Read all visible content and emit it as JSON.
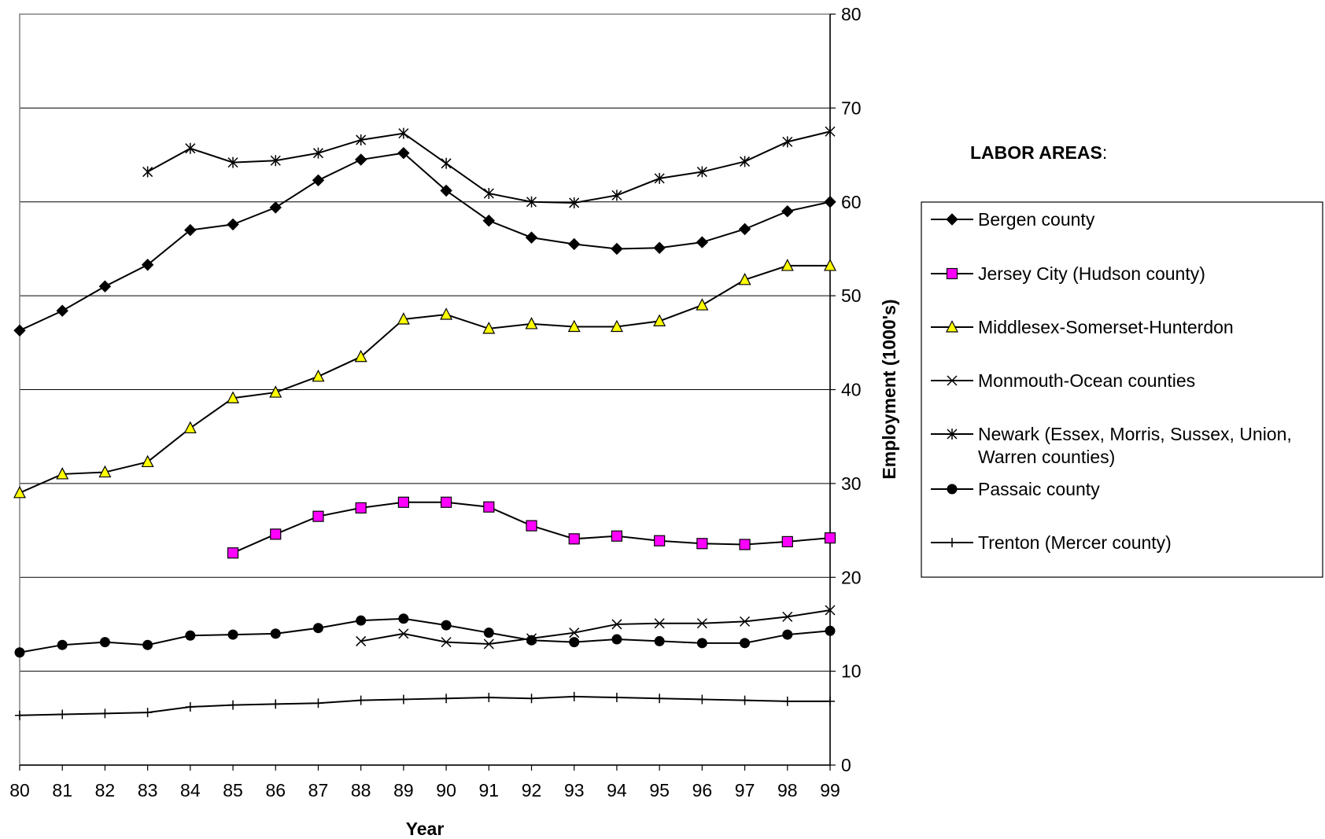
{
  "chart_data": {
    "type": "line",
    "title": "",
    "xlabel": "Year",
    "ylabel": "Employment (1000's)",
    "xlim": [
      80,
      99
    ],
    "ylim": [
      0,
      80
    ],
    "y_ticks": [
      0,
      10,
      20,
      30,
      40,
      50,
      60,
      70,
      80
    ],
    "x_tick_labels": [
      "80",
      "81",
      "82",
      "83",
      "84",
      "85",
      "86",
      "87",
      "88",
      "89",
      "90",
      "91",
      "92",
      "93",
      "94",
      "95",
      "96",
      "97",
      "98",
      "99"
    ],
    "y_axis_side": "right",
    "grid": "horizontal",
    "legend_placement": "right",
    "legend_heading": "LABOR AREAS",
    "legend_heading_suffix": ":",
    "series": [
      {
        "name": "Bergen county",
        "marker": "diamond",
        "color": "#000000",
        "x": [
          80,
          81,
          82,
          83,
          84,
          85,
          86,
          87,
          88,
          89,
          90,
          91,
          92,
          93,
          94,
          95,
          96,
          97,
          98,
          99
        ],
        "values": [
          46.3,
          48.4,
          51,
          53.3,
          57,
          57.6,
          59.4,
          62.3,
          64.5,
          65.2,
          61.2,
          58,
          56.2,
          55.5,
          55,
          55.1,
          55.7,
          57.1,
          59,
          60
        ]
      },
      {
        "name": "Jersey City (Hudson county)",
        "marker": "square",
        "color": "#ff00ff",
        "x": [
          85,
          86,
          87,
          88,
          89,
          90,
          91,
          92,
          93,
          94,
          95,
          96,
          97,
          98,
          99
        ],
        "values": [
          22.6,
          24.6,
          26.5,
          27.4,
          28,
          28,
          27.5,
          25.5,
          24.1,
          24.4,
          23.9,
          23.6,
          23.5,
          23.8,
          24.2
        ]
      },
      {
        "name": "Middlesex-Somerset-Hunterdon",
        "marker": "triangle",
        "color": "#ffff00",
        "x": [
          80,
          81,
          82,
          83,
          84,
          85,
          86,
          87,
          88,
          89,
          90,
          91,
          92,
          93,
          94,
          95,
          96,
          97,
          98,
          99
        ],
        "values": [
          29,
          31,
          31.2,
          32.3,
          35.9,
          39.1,
          39.7,
          41.4,
          43.5,
          47.5,
          48,
          46.5,
          47,
          46.7,
          46.7,
          47.3,
          49,
          51.7,
          53.2,
          53.2
        ]
      },
      {
        "name": "Monmouth-Ocean counties",
        "marker": "x",
        "color": "#000000",
        "x": [
          88,
          89,
          90,
          91,
          92,
          93,
          94,
          95,
          96,
          97,
          98,
          99
        ],
        "values": [
          13.2,
          14,
          13.1,
          12.9,
          13.5,
          14.1,
          15,
          15.1,
          15.1,
          15.3,
          15.8,
          16.5
        ]
      },
      {
        "name": "Newark (Essex, Morris, Sussex, Union, Warren counties)",
        "name_lines": [
          "Newark (Essex, Morris, Sussex, Union,",
          "Warren counties)"
        ],
        "marker": "asterisk",
        "color": "#000000",
        "x": [
          83,
          84,
          85,
          86,
          87,
          88,
          89,
          90,
          91,
          92,
          93,
          94,
          95,
          96,
          97,
          98,
          99
        ],
        "values": [
          63.2,
          65.7,
          64.2,
          64.4,
          65.2,
          66.6,
          67.3,
          64.1,
          60.9,
          60,
          59.9,
          60.7,
          62.5,
          63.2,
          64.3,
          66.4,
          67.5
        ]
      },
      {
        "name": "Passaic county",
        "marker": "circle",
        "color": "#000000",
        "x": [
          80,
          81,
          82,
          83,
          84,
          85,
          86,
          87,
          88,
          89,
          90,
          91,
          92,
          93,
          94,
          95,
          96,
          97,
          98,
          99
        ],
        "values": [
          12,
          12.8,
          13.1,
          12.8,
          13.8,
          13.9,
          14,
          14.6,
          15.4,
          15.6,
          14.9,
          14.1,
          13.3,
          13.1,
          13.4,
          13.2,
          13,
          13,
          13.9,
          14.3
        ]
      },
      {
        "name": "Trenton (Mercer county)",
        "marker": "plus",
        "color": "#000000",
        "x": [
          80,
          81,
          82,
          83,
          84,
          85,
          86,
          87,
          88,
          89,
          90,
          91,
          92,
          93,
          94,
          95,
          96,
          97,
          98,
          99
        ],
        "values": [
          5.3,
          5.4,
          5.5,
          5.6,
          6.2,
          6.4,
          6.5,
          6.6,
          6.9,
          7,
          7.1,
          7.2,
          7.1,
          7.3,
          7.2,
          7.1,
          7,
          6.9,
          6.8,
          6.8
        ]
      }
    ]
  }
}
